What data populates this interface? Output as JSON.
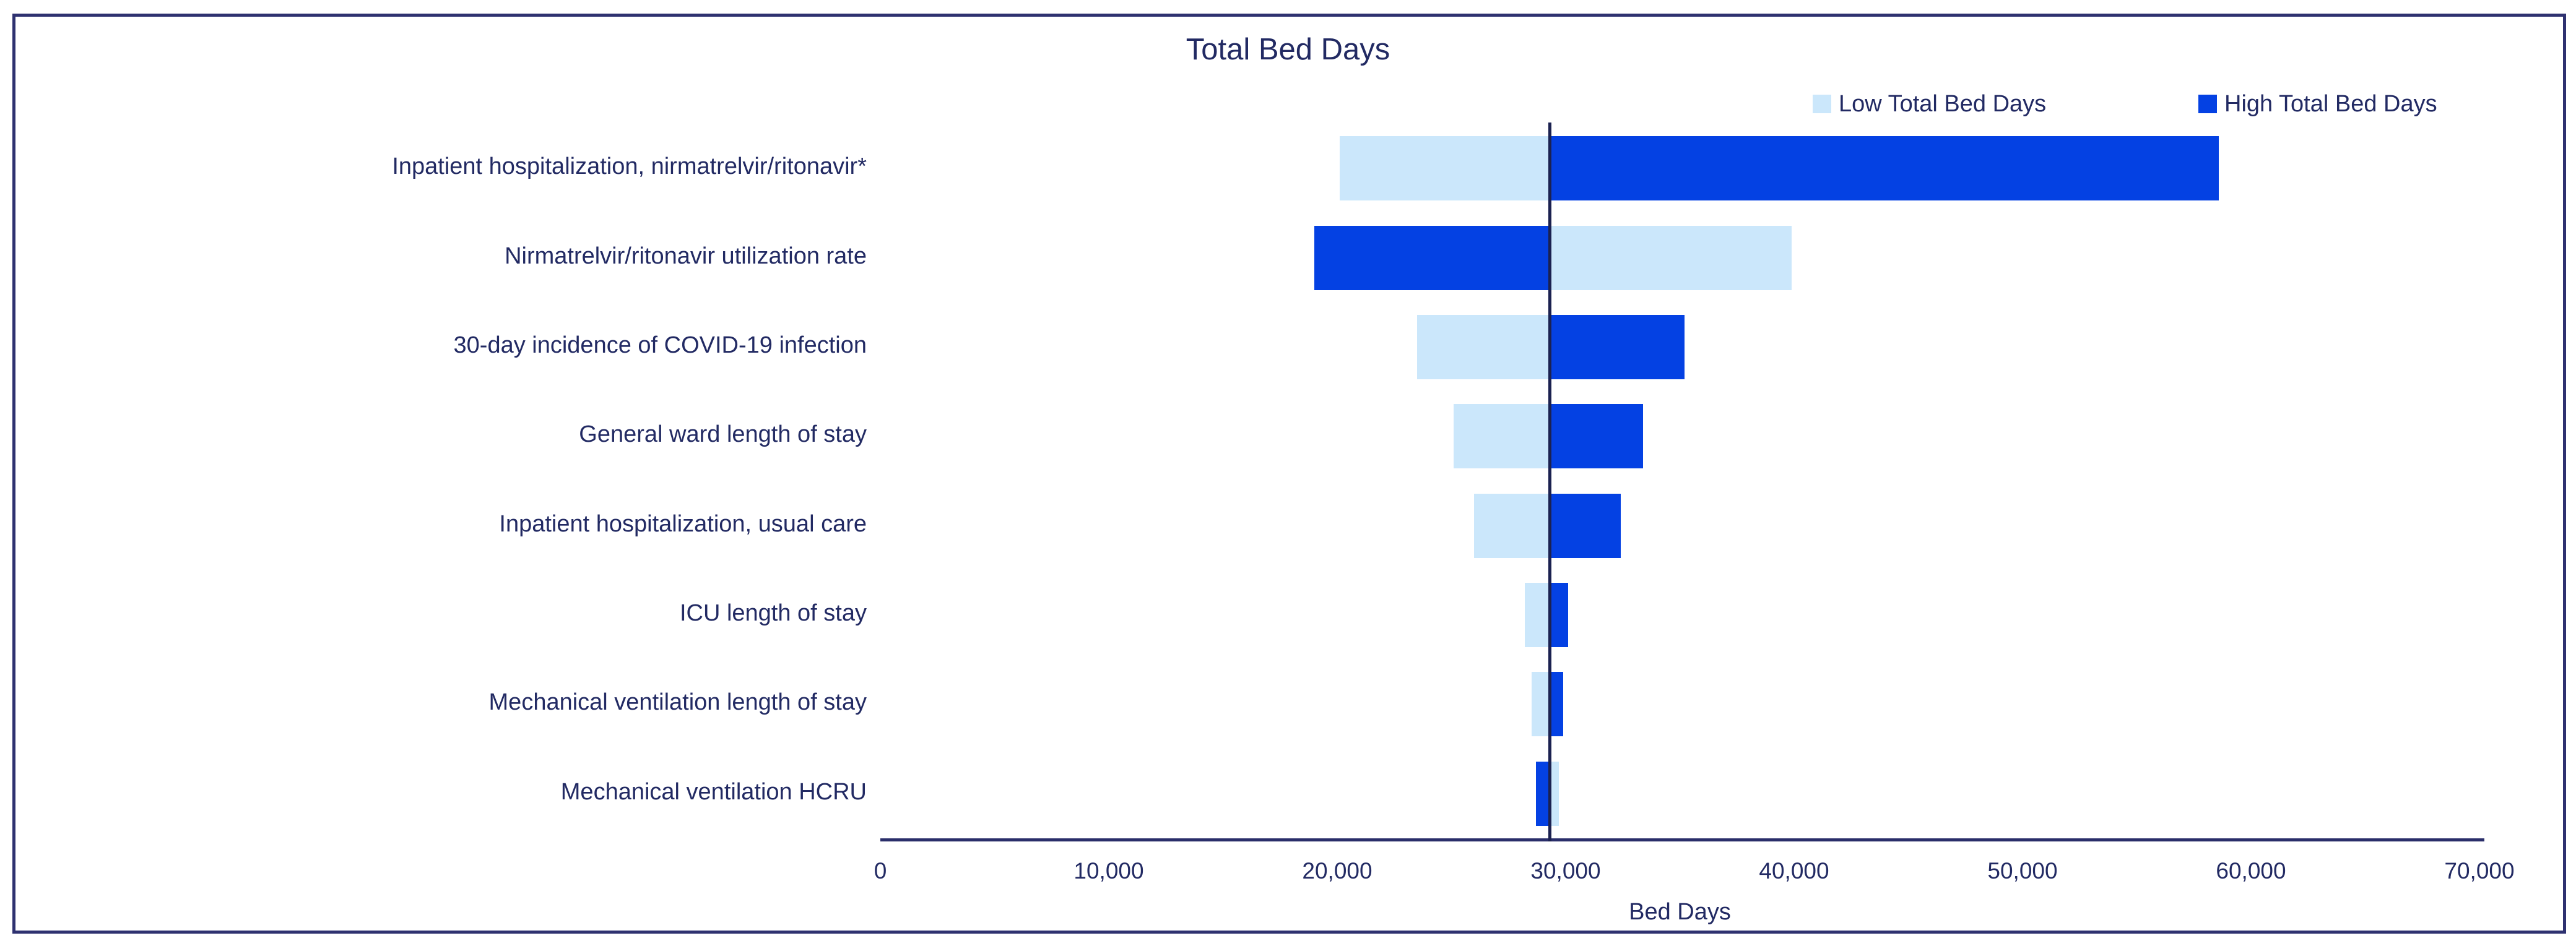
{
  "title": "Total Bed Days",
  "legend": {
    "low_label": "Low Total Bed Days",
    "high_label": "High Total Bed Days",
    "position": "top-right"
  },
  "colors": {
    "low_bar": "#cbe7fb",
    "high_bar": "#0441e3",
    "text": "#222a63",
    "axis_line": "#2a2e6a",
    "baseline_line": "#1b2150",
    "frame_border": "#2e3170",
    "background": "#ffffff"
  },
  "chart_data": {
    "type": "bar",
    "subtype": "tornado",
    "orientation": "horizontal",
    "title": "Total Bed Days",
    "xlabel": "Bed Days",
    "xlim": [
      0,
      70000
    ],
    "xticks": [
      0,
      10000,
      20000,
      30000,
      40000,
      50000,
      60000,
      70000
    ],
    "grid": false,
    "legend_position": "top-right",
    "baseline": 29300,
    "categories": [
      "Inpatient hospitalization, nirmatrelvir/ritonavir*",
      "Nirmatrelvir/ritonavir utilization rate",
      "30-day incidence of COVID-19 infection",
      "General ward length of stay",
      "Inpatient hospitalization, usual care",
      "ICU length of stay",
      "Mechanical ventilation length of stay",
      "Mechanical ventilation HCRU"
    ],
    "series": [
      {
        "name": "Low Total Bed Days",
        "values": [
          20100,
          39900,
          23500,
          25100,
          26000,
          28200,
          28500,
          29700
        ]
      },
      {
        "name": "High Total Bed Days",
        "values": [
          58600,
          19000,
          35200,
          33400,
          32400,
          30100,
          29900,
          28700
        ]
      }
    ]
  }
}
